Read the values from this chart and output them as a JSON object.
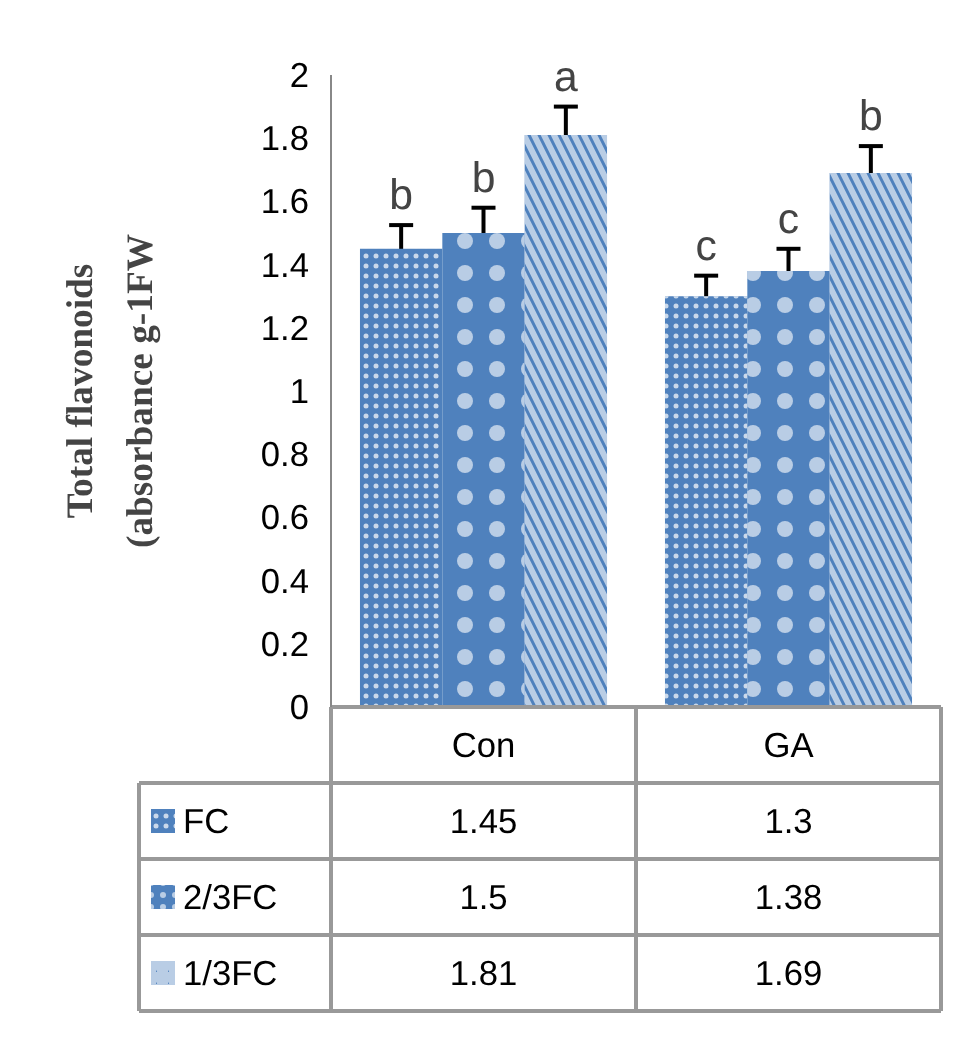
{
  "chart_data": {
    "type": "bar",
    "ylabel": "Total flavonoids\n(absorbance g-1FW",
    "categories": [
      "Con",
      "GA"
    ],
    "series": [
      {
        "name": "FC",
        "color": "#4f81bd",
        "values": [
          1.45,
          1.3
        ],
        "errors": [
          0.075,
          0.065
        ]
      },
      {
        "name": "2/3FC",
        "color": "#4f81bd",
        "values": [
          1.5,
          1.38
        ],
        "errors": [
          0.08,
          0.07
        ]
      },
      {
        "name": "1/3FC",
        "color": "#4f81bd",
        "values": [
          1.81,
          1.69
        ],
        "errors": [
          0.09,
          0.085
        ]
      }
    ],
    "ylim": [
      0,
      2
    ],
    "yticks": [
      0,
      0.2,
      0.4,
      0.6,
      0.8,
      1,
      1.2,
      1.4,
      1.6,
      1.8,
      2
    ],
    "annotations": [
      "b",
      "b",
      "a",
      "c",
      "c",
      "b"
    ],
    "data_labels": true,
    "legend": "bottom",
    "grid": false
  }
}
